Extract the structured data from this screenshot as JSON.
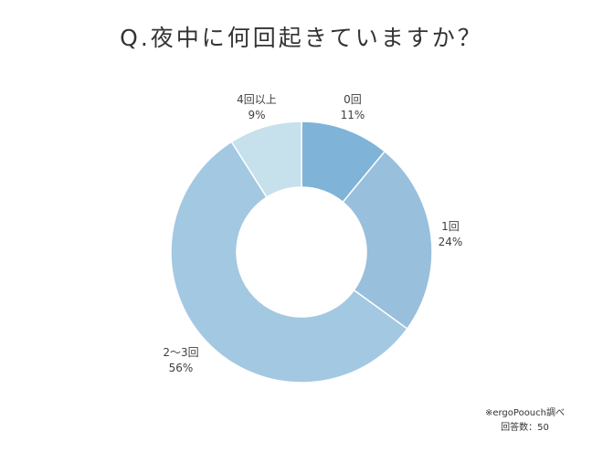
{
  "chart_data": {
    "type": "pie",
    "title": "Q.夜中に何回起きていますか？",
    "slices": [
      {
        "name": "0回",
        "value": 11,
        "label": "11%",
        "color": "#7fb3d8"
      },
      {
        "name": "1回",
        "value": 24,
        "label": "24%",
        "color": "#98bfdc"
      },
      {
        "name": "2〜3回",
        "value": 56,
        "label": "56%",
        "color": "#a3c8e1"
      },
      {
        "name": "4回以上",
        "value": 9,
        "label": "9%",
        "color": "#c6e0ec"
      }
    ],
    "donut": true
  },
  "footnote": {
    "source": "※ergoPoouch調べ",
    "sample": "回答数：50"
  }
}
